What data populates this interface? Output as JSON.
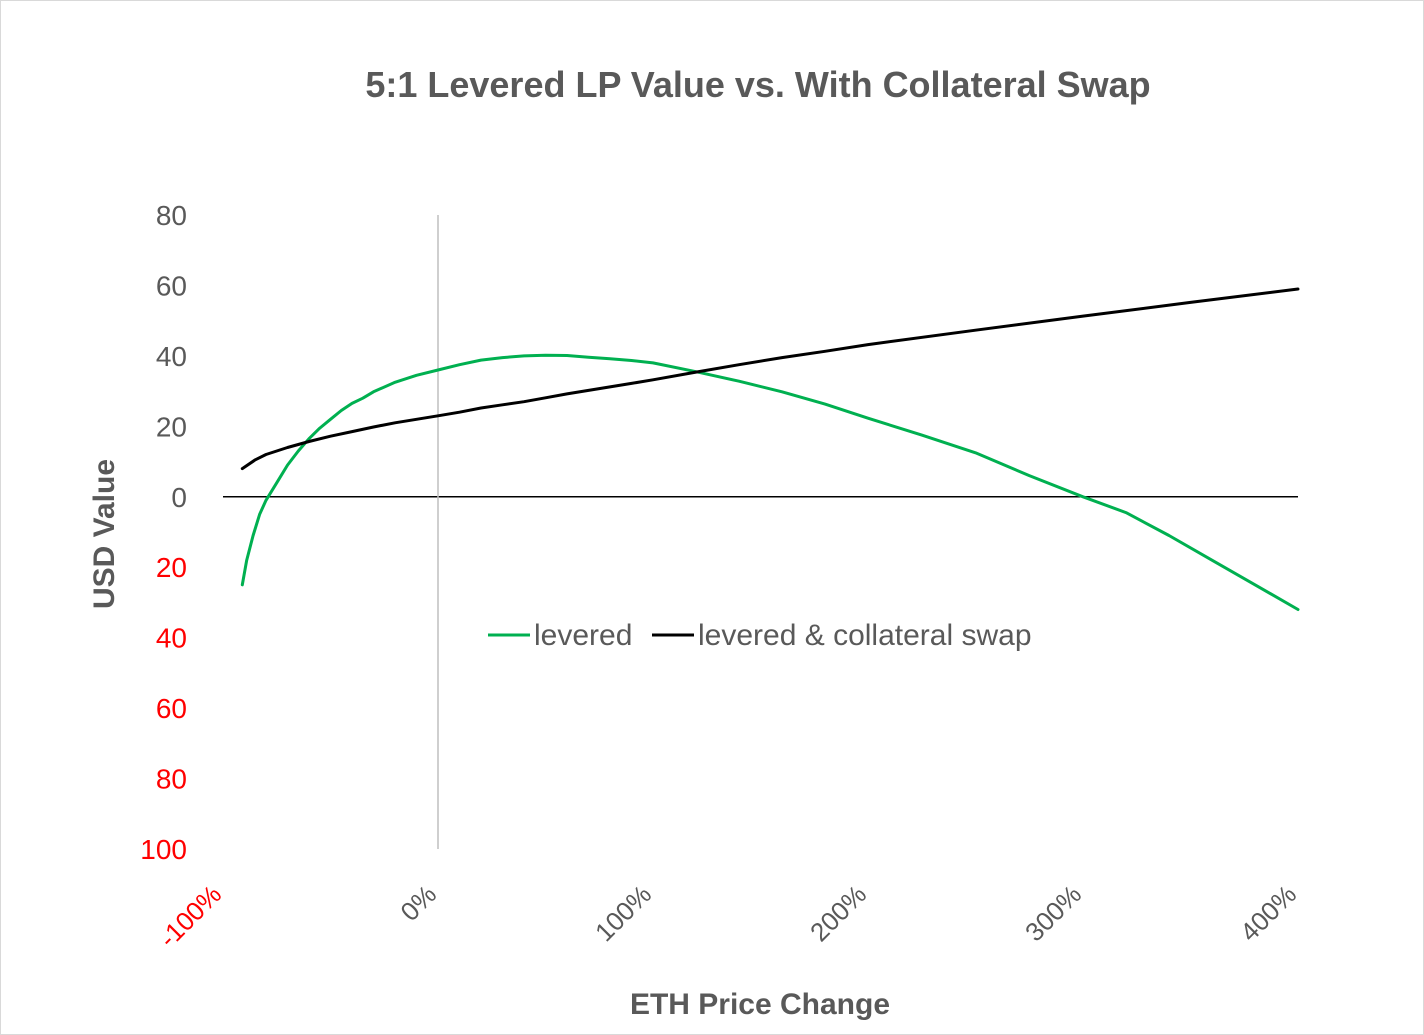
{
  "chart_data": {
    "type": "line",
    "title": "5:1 Levered LP Value  vs. With Collateral Swap",
    "xlabel": "ETH Price Change",
    "ylabel": "USD Value",
    "xlim": [
      -100,
      400
    ],
    "ylim": [
      -100,
      80
    ],
    "x_unit": "%",
    "x_ticks": [
      -100,
      0,
      100,
      200,
      300,
      400
    ],
    "x_tick_labels": [
      "-100%",
      "0%",
      "100%",
      "200%",
      "300%",
      "400%"
    ],
    "x_tick_colors": [
      "#ff0000",
      "#595959",
      "#595959",
      "#595959",
      "#595959",
      "#595959"
    ],
    "y_ticks": [
      80,
      60,
      40,
      20,
      0,
      -20,
      -40,
      -60,
      -80,
      -100
    ],
    "y_tick_labels": [
      "80",
      "60",
      "40",
      "20",
      "0",
      "20",
      "40",
      "60",
      "80",
      "100"
    ],
    "y_tick_colors": [
      "#595959",
      "#595959",
      "#595959",
      "#595959",
      "#595959",
      "#ff0000",
      "#ff0000",
      "#ff0000",
      "#ff0000",
      "#ff0000"
    ],
    "grid": false,
    "legend_position": "center",
    "series": [
      {
        "name": "levered",
        "color": "#00b050",
        "x": [
          -91,
          -89,
          -86,
          -83,
          -80,
          -75,
          -70,
          -65,
          -60,
          -55,
          -50,
          -45,
          -40,
          -35,
          -30,
          -20,
          -10,
          0,
          10,
          20,
          30,
          40,
          50,
          60,
          70,
          80,
          90,
          100,
          120,
          140,
          160,
          180,
          200,
          225,
          250,
          275,
          300,
          320,
          340,
          360,
          380,
          400
        ],
        "y": [
          -25,
          -18,
          -11,
          -5,
          -1,
          4,
          9,
          13,
          16.5,
          19.5,
          22,
          24.5,
          26.5,
          28,
          29.8,
          32.5,
          34.5,
          36,
          37.5,
          38.8,
          39.5,
          40,
          40.2,
          40.1,
          39.6,
          39.2,
          38.7,
          38,
          35.5,
          32.8,
          29.8,
          26.3,
          22.3,
          17.5,
          12.5,
          6,
          0,
          -4.5,
          -11,
          -18,
          -25,
          -32
        ]
      },
      {
        "name": "levered & collateral swap",
        "color": "#000000",
        "x": [
          -91,
          -85,
          -80,
          -70,
          -60,
          -50,
          -40,
          -30,
          -20,
          -10,
          0,
          10,
          20,
          30,
          40,
          50,
          60,
          70,
          80,
          90,
          100,
          120,
          140,
          160,
          180,
          200,
          250,
          300,
          350,
          400
        ],
        "y": [
          8,
          10.5,
          12,
          14,
          15.7,
          17.2,
          18.5,
          19.8,
          21,
          22,
          23,
          24,
          25.2,
          26.1,
          27,
          28.1,
          29.2,
          30.2,
          31.2,
          32.2,
          33.2,
          35.4,
          37.5,
          39.5,
          41.3,
          43.2,
          47.3,
          51.3,
          55.2,
          59
        ]
      }
    ]
  }
}
